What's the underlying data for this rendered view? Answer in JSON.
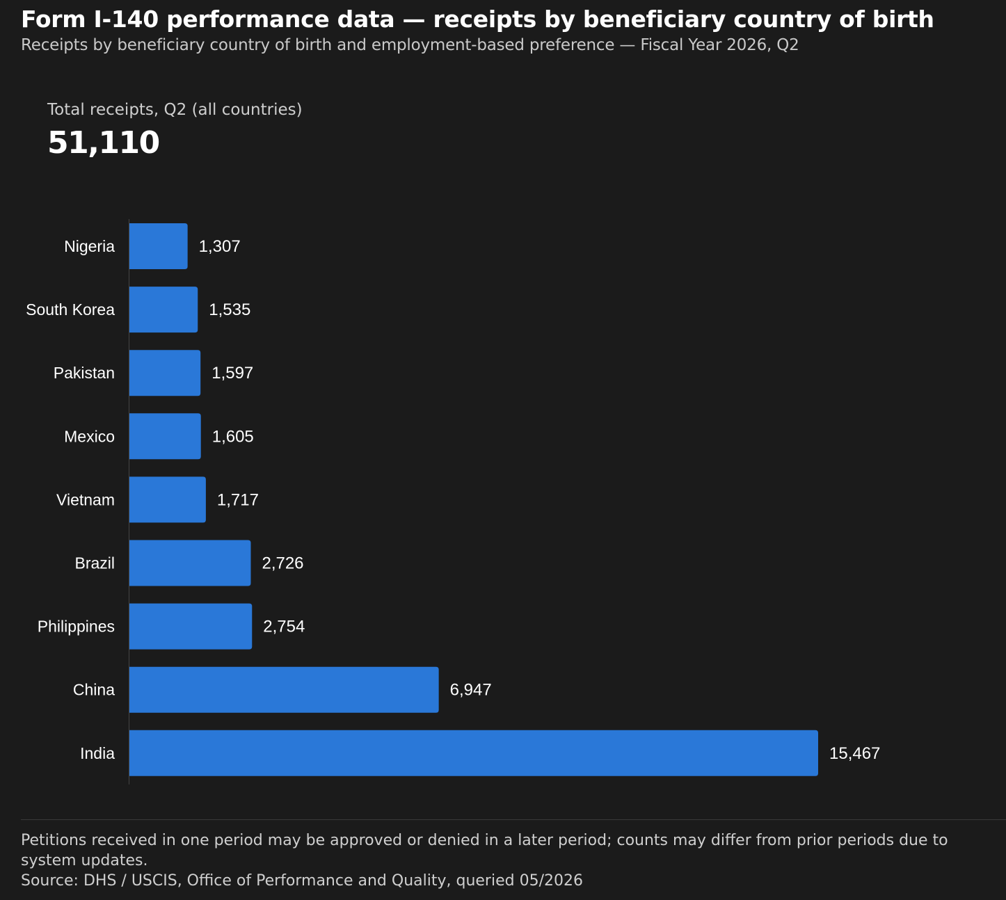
{
  "title": "Form I-140 performance data — receipts by beneficiary country of birth",
  "subtitle": "Receipts by beneficiary country of birth and employment-based preference — Fiscal Year 2026, Q2",
  "kpi": {
    "label": "Total receipts, Q2 (all countries)",
    "value": "51,110"
  },
  "footer": {
    "note": "Petitions received in one period may be approved or denied in a later period; counts may differ from prior periods due to system updates.",
    "source": "Source: DHS / USCIS, Office of Performance and Quality, queried 05/2026"
  },
  "colors": {
    "background": "#1b1b1b",
    "bar": "#2a78d8",
    "text": "#ffffff",
    "muted_text": "#cfcfcf"
  },
  "chart_data": {
    "type": "bar",
    "orientation": "horizontal",
    "categories": [
      "Nigeria",
      "South Korea",
      "Pakistan",
      "Mexico",
      "Vietnam",
      "Brazil",
      "Philippines",
      "China",
      "India"
    ],
    "values": [
      1307,
      1535,
      1597,
      1605,
      1717,
      2726,
      2754,
      6947,
      15467
    ],
    "value_labels": [
      "1,307",
      "1,535",
      "1,597",
      "1,605",
      "1,717",
      "2,726",
      "2,754",
      "6,947",
      "15,467"
    ],
    "xlim": [
      0,
      15467
    ],
    "grid": false,
    "legend": "none"
  }
}
